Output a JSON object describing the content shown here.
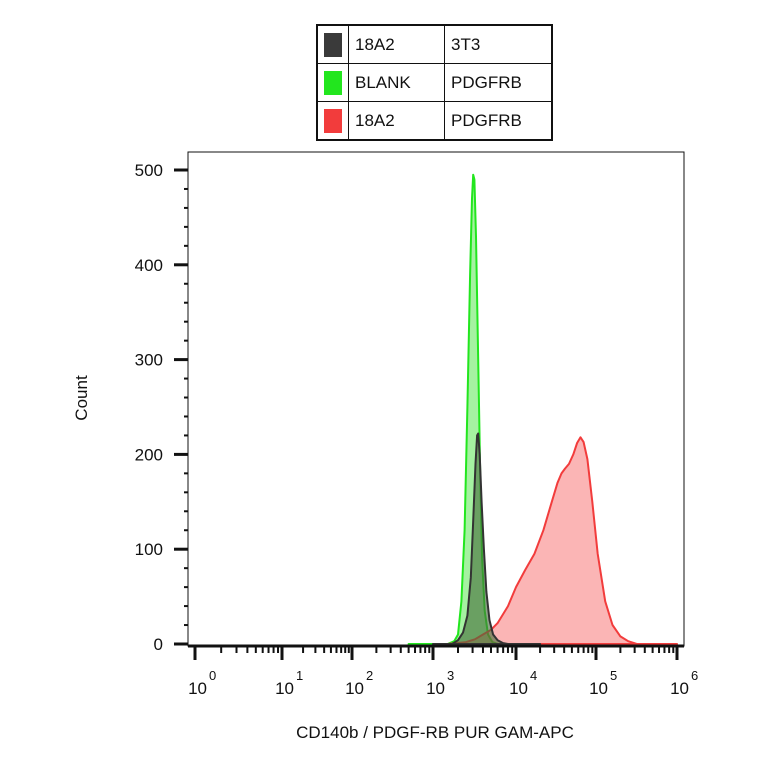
{
  "chart_data": {
    "type": "area",
    "title": "",
    "xlabel": "CD140b / PDGF-RB PUR GAM-APC",
    "ylabel": "Count",
    "x_scale": "log",
    "xlim": [
      1,
      1000000
    ],
    "ylim": [
      0,
      500
    ],
    "y_ticks": [
      0,
      100,
      200,
      300,
      400,
      500
    ],
    "x_tick_base": "10",
    "x_tick_exponents": [
      "0",
      "1",
      "2",
      "3",
      "4",
      "5",
      "6"
    ],
    "legend": {
      "placement": "top",
      "rows": [
        {
          "clone": "18A2",
          "antigen": "3T3",
          "color": "#3a3a3a"
        },
        {
          "clone": "BLANK",
          "antigen": "PDGFRB",
          "color": "#22e61e"
        },
        {
          "clone": "18A2",
          "antigen": "PDGFRB",
          "color": "#f23c3c"
        }
      ]
    },
    "series": [
      {
        "color": "#22e61e",
        "fill": "rgba(40,225,30,0.42)",
        "points": [
          [
            500,
            0
          ],
          [
            1500,
            0
          ],
          [
            1800,
            3
          ],
          [
            2000,
            10
          ],
          [
            2200,
            45
          ],
          [
            2400,
            120
          ],
          [
            2600,
            250
          ],
          [
            2800,
            390
          ],
          [
            2950,
            470
          ],
          [
            3050,
            495
          ],
          [
            3150,
            490
          ],
          [
            3300,
            430
          ],
          [
            3500,
            300
          ],
          [
            3700,
            180
          ],
          [
            3900,
            90
          ],
          [
            4200,
            35
          ],
          [
            4600,
            10
          ],
          [
            5200,
            2
          ],
          [
            6000,
            0
          ],
          [
            10000,
            0
          ]
        ]
      },
      {
        "color": "#f23c3c",
        "fill": "rgba(245,60,60,0.38)",
        "points": [
          [
            1500,
            0
          ],
          [
            2500,
            2
          ],
          [
            3200,
            5
          ],
          [
            4000,
            10
          ],
          [
            5000,
            15
          ],
          [
            6000,
            22
          ],
          [
            8000,
            40
          ],
          [
            10000,
            60
          ],
          [
            13000,
            78
          ],
          [
            17000,
            95
          ],
          [
            22000,
            120
          ],
          [
            28000,
            150
          ],
          [
            33000,
            170
          ],
          [
            37000,
            180
          ],
          [
            41000,
            185
          ],
          [
            46000,
            190
          ],
          [
            52000,
            200
          ],
          [
            58000,
            212
          ],
          [
            64000,
            218
          ],
          [
            70000,
            213
          ],
          [
            78000,
            195
          ],
          [
            90000,
            150
          ],
          [
            105000,
            95
          ],
          [
            130000,
            45
          ],
          [
            160000,
            20
          ],
          [
            200000,
            8
          ],
          [
            250000,
            3
          ],
          [
            320000,
            0
          ],
          [
            1000000,
            0
          ]
        ]
      },
      {
        "color": "#333333",
        "fill": "rgba(70,110,60,0.62)",
        "points": [
          [
            1000,
            0
          ],
          [
            1700,
            0
          ],
          [
            2000,
            4
          ],
          [
            2300,
            12
          ],
          [
            2600,
            30
          ],
          [
            2850,
            70
          ],
          [
            3050,
            130
          ],
          [
            3250,
            190
          ],
          [
            3400,
            220
          ],
          [
            3500,
            222
          ],
          [
            3650,
            200
          ],
          [
            3850,
            150
          ],
          [
            4100,
            100
          ],
          [
            4400,
            55
          ],
          [
            4800,
            25
          ],
          [
            5300,
            10
          ],
          [
            6000,
            4
          ],
          [
            7000,
            1
          ],
          [
            8000,
            0
          ],
          [
            20000,
            0
          ]
        ]
      }
    ]
  }
}
